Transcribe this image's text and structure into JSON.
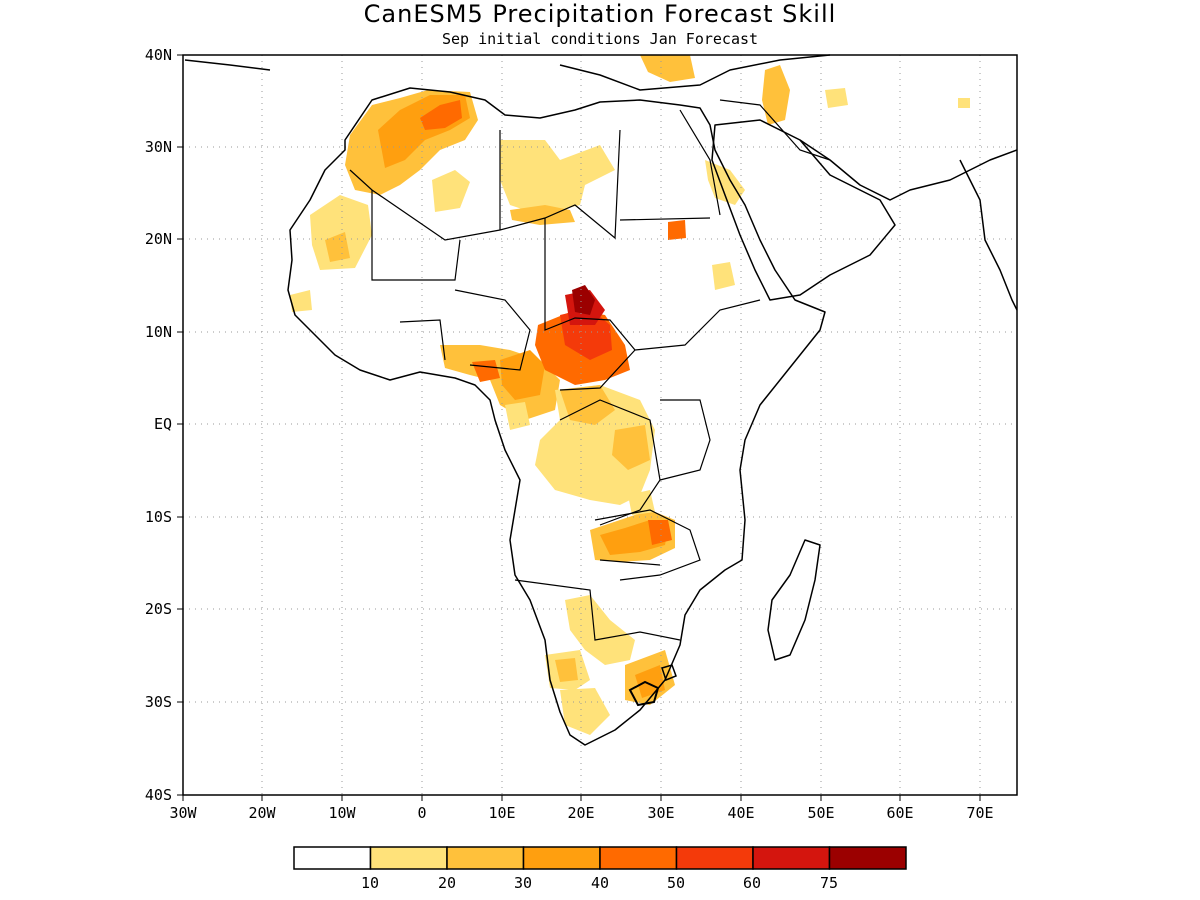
{
  "title": "CanESM5 Precipitation Forecast Skill",
  "subtitle": "Sep initial conditions  Jan Forecast",
  "axes": {
    "x_ticks": [
      "30W",
      "20W",
      "10W",
      "0",
      "10E",
      "20E",
      "30E",
      "40E",
      "50E",
      "60E",
      "70E"
    ],
    "y_ticks": [
      "40N",
      "30N",
      "20N",
      "10N",
      "EQ",
      "10S",
      "20S",
      "30S",
      "40S"
    ]
  },
  "colorbar": {
    "labels": [
      "10",
      "20",
      "30",
      "40",
      "50",
      "60",
      "75"
    ],
    "colors": [
      "#ffffff",
      "#ffe27a",
      "#ffc13b",
      "#ff9f0f",
      "#ff6a00",
      "#f43a0a",
      "#d4150e",
      "#9b0000"
    ]
  }
}
